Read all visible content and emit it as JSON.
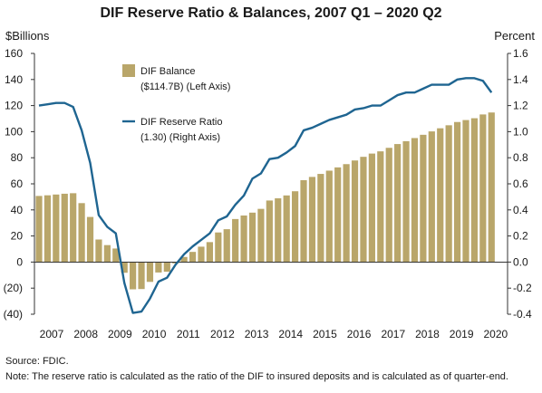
{
  "chart_data": {
    "type": "bar",
    "title": "DIF Reserve Ratio & Balances, 2007 Q1 – 2020 Q2",
    "ylabel_left": "$Billions",
    "ylabel_right": "Percent",
    "ylim_left": [
      -40,
      160
    ],
    "ylim_right": [
      -0.4,
      1.6
    ],
    "yticks_left": [
      "160",
      "140",
      "120",
      "100",
      "80",
      "60",
      "40",
      "20",
      "0",
      "(20)",
      "(40)"
    ],
    "yticks_left_values": [
      160,
      140,
      120,
      100,
      80,
      60,
      40,
      20,
      0,
      -20,
      -40
    ],
    "yticks_right": [
      "1.6",
      "1.4",
      "1.2",
      "1.0",
      "0.8",
      "0.6",
      "0.4",
      "0.2",
      "0.0",
      "-0.2",
      "-0.4"
    ],
    "yticks_right_values": [
      1.6,
      1.4,
      1.2,
      1.0,
      0.8,
      0.6,
      0.4,
      0.2,
      0.0,
      -0.2,
      -0.4
    ],
    "xtick_labels": [
      "2007",
      "2008",
      "2009",
      "2010",
      "2011",
      "2012",
      "2013",
      "2014",
      "2015",
      "2016",
      "2017",
      "2018",
      "2019",
      "2020"
    ],
    "categories": [
      "2007 Q1",
      "2007 Q2",
      "2007 Q3",
      "2007 Q4",
      "2008 Q1",
      "2008 Q2",
      "2008 Q3",
      "2008 Q4",
      "2009 Q1",
      "2009 Q2",
      "2009 Q3",
      "2009 Q4",
      "2010 Q1",
      "2010 Q2",
      "2010 Q3",
      "2010 Q4",
      "2011 Q1",
      "2011 Q2",
      "2011 Q3",
      "2011 Q4",
      "2012 Q1",
      "2012 Q2",
      "2012 Q3",
      "2012 Q4",
      "2013 Q1",
      "2013 Q2",
      "2013 Q3",
      "2013 Q4",
      "2014 Q1",
      "2014 Q2",
      "2014 Q3",
      "2014 Q4",
      "2015 Q1",
      "2015 Q2",
      "2015 Q3",
      "2015 Q4",
      "2016 Q1",
      "2016 Q2",
      "2016 Q3",
      "2016 Q4",
      "2017 Q1",
      "2017 Q2",
      "2017 Q3",
      "2017 Q4",
      "2018 Q1",
      "2018 Q2",
      "2018 Q3",
      "2018 Q4",
      "2019 Q1",
      "2019 Q2",
      "2019 Q3",
      "2019 Q4",
      "2020 Q1",
      "2020 Q2"
    ],
    "series": [
      {
        "name": "DIF Balance",
        "legend_line2": "($114.7B) (Left Axis)",
        "type": "bar",
        "axis": "left",
        "color": "#b9a66a",
        "values": [
          50.7,
          51.2,
          51.8,
          52.4,
          52.8,
          45.2,
          34.6,
          17.3,
          13.0,
          10.4,
          -8.2,
          -20.9,
          -20.7,
          -15.2,
          -8.0,
          -7.4,
          -1.0,
          3.9,
          7.8,
          11.8,
          15.3,
          22.7,
          25.2,
          33.0,
          35.7,
          37.9,
          40.8,
          47.2,
          48.9,
          51.1,
          54.3,
          62.8,
          65.3,
          67.6,
          70.1,
          72.6,
          75.1,
          77.9,
          80.7,
          83.2,
          84.9,
          87.6,
          90.5,
          92.7,
          95.1,
          97.6,
          100.2,
          102.6,
          104.9,
          107.4,
          108.9,
          110.3,
          113.2,
          114.7
        ]
      },
      {
        "name": "DIF Reserve Ratio",
        "legend_line2": "(1.30) (Right Axis)",
        "type": "line",
        "axis": "right",
        "color": "#1f6591",
        "values": [
          1.2,
          1.21,
          1.22,
          1.22,
          1.19,
          1.01,
          0.76,
          0.36,
          0.27,
          0.22,
          -0.16,
          -0.39,
          -0.38,
          -0.28,
          -0.15,
          -0.12,
          -0.02,
          0.06,
          0.12,
          0.17,
          0.22,
          0.32,
          0.35,
          0.44,
          0.51,
          0.64,
          0.68,
          0.79,
          0.8,
          0.84,
          0.89,
          1.01,
          1.03,
          1.06,
          1.09,
          1.11,
          1.13,
          1.17,
          1.18,
          1.2,
          1.2,
          1.24,
          1.28,
          1.3,
          1.3,
          1.33,
          1.36,
          1.36,
          1.36,
          1.4,
          1.41,
          1.41,
          1.39,
          1.3
        ]
      }
    ],
    "grid": false,
    "legend_position": "top-left"
  },
  "source": "Source: FDIC.",
  "note": "Note: The reserve ratio is calculated as the ratio of the DIF to insured deposits and is calculated as of quarter-end."
}
